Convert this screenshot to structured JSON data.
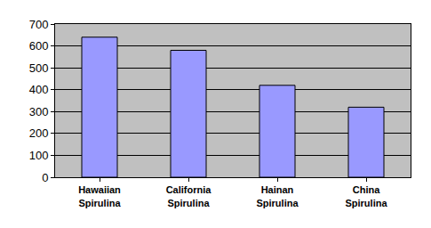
{
  "chart_data": {
    "type": "bar",
    "categories": [
      "Hawaiian Spirulina",
      "California Spirulina",
      "Hainan Spirulina",
      "China Spirulina"
    ],
    "values": [
      640,
      580,
      420,
      320
    ],
    "color": "#9999ff",
    "ylim": [
      0,
      700
    ],
    "yticks": [
      0,
      100,
      200,
      300,
      400,
      500,
      600,
      700
    ],
    "grid": true
  }
}
